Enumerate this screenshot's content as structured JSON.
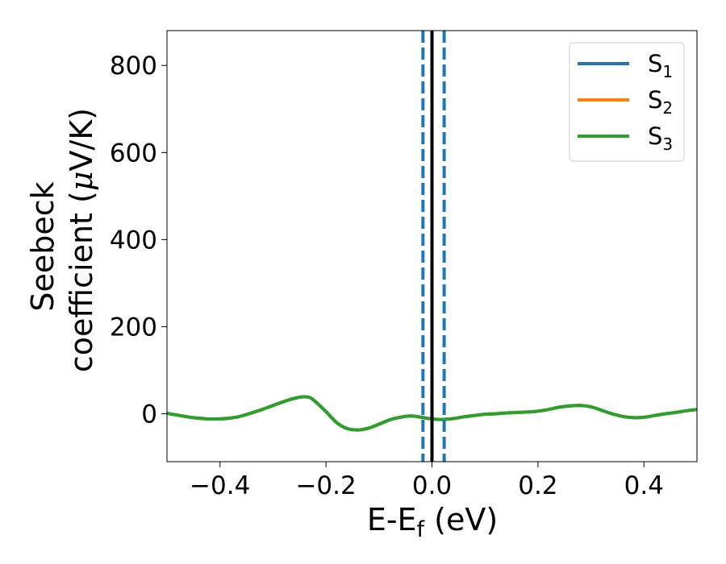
{
  "chart_data": {
    "type": "line",
    "xlabel": {
      "main": "E-E",
      "sub": "f",
      "tail": " (eV)"
    },
    "ylabel": {
      "line1": "Seebeck",
      "line2_pre": "coefficient  (",
      "line2_mu": "μ",
      "line2_post": "V/K)"
    },
    "xlim": [
      -0.5,
      0.5
    ],
    "ylim": [
      -110,
      880
    ],
    "xticks": [
      -0.4,
      -0.2,
      0.0,
      0.2,
      0.4
    ],
    "xtick_labels": [
      "−0.4",
      "−0.2",
      "0.0",
      "0.2",
      "0.4"
    ],
    "yticks": [
      0,
      200,
      400,
      600,
      800
    ],
    "ytick_labels": [
      "0",
      "200",
      "400",
      "600",
      "800"
    ],
    "grid": false,
    "legend_position": "top-right",
    "series": [
      {
        "name": "S",
        "sub": "1",
        "color": "#1f77b4",
        "x": [
          -0.5,
          -0.45,
          -0.41,
          -0.37,
          -0.33,
          -0.3,
          -0.27,
          -0.25,
          -0.24,
          -0.23,
          -0.22,
          -0.2,
          -0.18,
          -0.16,
          -0.14,
          -0.12,
          -0.1,
          -0.08,
          -0.06,
          -0.04,
          -0.02,
          0.0,
          0.02,
          0.04,
          0.06,
          0.08,
          0.1,
          0.12,
          0.14,
          0.16,
          0.18,
          0.2,
          0.22,
          0.24,
          0.26,
          0.28,
          0.3,
          0.32,
          0.34,
          0.36,
          0.38,
          0.4,
          0.42,
          0.44,
          0.46,
          0.48,
          0.5
        ],
        "y": [
          1,
          -9,
          -12,
          -8,
          6,
          19,
          32,
          38,
          39,
          37,
          28,
          5,
          -20,
          -34,
          -37,
          -33,
          -24,
          -14,
          -8,
          -5,
          -8,
          -12,
          -13,
          -11,
          -7,
          -4,
          -1,
          0,
          2,
          3,
          4,
          6,
          10,
          15,
          18,
          19,
          16,
          8,
          0,
          -6,
          -9,
          -8,
          -4,
          0,
          3,
          7,
          10
        ]
      },
      {
        "name": "S",
        "sub": "2",
        "color": "#ff7f0e",
        "x": [
          -0.5,
          -0.45,
          -0.41,
          -0.37,
          -0.33,
          -0.3,
          -0.27,
          -0.25,
          -0.24,
          -0.23,
          -0.22,
          -0.2,
          -0.18,
          -0.16,
          -0.14,
          -0.12,
          -0.1,
          -0.08,
          -0.06,
          -0.04,
          -0.02,
          0.0,
          0.02,
          0.04,
          0.06,
          0.08,
          0.1,
          0.12,
          0.14,
          0.16,
          0.18,
          0.2,
          0.22,
          0.24,
          0.26,
          0.28,
          0.3,
          0.32,
          0.34,
          0.36,
          0.38,
          0.4,
          0.42,
          0.44,
          0.46,
          0.48,
          0.5
        ],
        "y": [
          1,
          -9,
          -12,
          -8,
          6,
          19,
          32,
          38,
          39,
          37,
          28,
          5,
          -20,
          -34,
          -37,
          -33,
          -24,
          -14,
          -8,
          -5,
          -8,
          -12,
          -13,
          -11,
          -7,
          -4,
          -1,
          0,
          2,
          3,
          4,
          6,
          10,
          15,
          18,
          19,
          16,
          8,
          0,
          -6,
          -9,
          -8,
          -4,
          0,
          3,
          7,
          10
        ]
      },
      {
        "name": "S",
        "sub": "3",
        "color": "#2ca02c",
        "x": [
          -0.5,
          -0.45,
          -0.41,
          -0.37,
          -0.33,
          -0.3,
          -0.27,
          -0.25,
          -0.24,
          -0.23,
          -0.22,
          -0.2,
          -0.18,
          -0.16,
          -0.14,
          -0.12,
          -0.1,
          -0.08,
          -0.06,
          -0.04,
          -0.02,
          0.0,
          0.02,
          0.04,
          0.06,
          0.08,
          0.1,
          0.12,
          0.14,
          0.16,
          0.18,
          0.2,
          0.22,
          0.24,
          0.26,
          0.28,
          0.3,
          0.32,
          0.34,
          0.36,
          0.38,
          0.4,
          0.42,
          0.44,
          0.46,
          0.48,
          0.5
        ],
        "y": [
          1,
          -9,
          -12,
          -8,
          6,
          19,
          32,
          38,
          39,
          37,
          28,
          5,
          -20,
          -34,
          -37,
          -33,
          -24,
          -14,
          -8,
          -5,
          -8,
          -12,
          -13,
          -11,
          -7,
          -4,
          -1,
          0,
          2,
          3,
          4,
          6,
          10,
          15,
          18,
          19,
          16,
          8,
          0,
          -6,
          -9,
          -8,
          -4,
          0,
          3,
          7,
          10
        ]
      }
    ],
    "vlines": [
      {
        "x": 0.0,
        "color": "#000000",
        "style": "solid"
      },
      {
        "x": -0.017,
        "color": "#1f77b4",
        "style": "dashed"
      },
      {
        "x": 0.023,
        "color": "#1f77b4",
        "style": "dashed"
      }
    ]
  }
}
